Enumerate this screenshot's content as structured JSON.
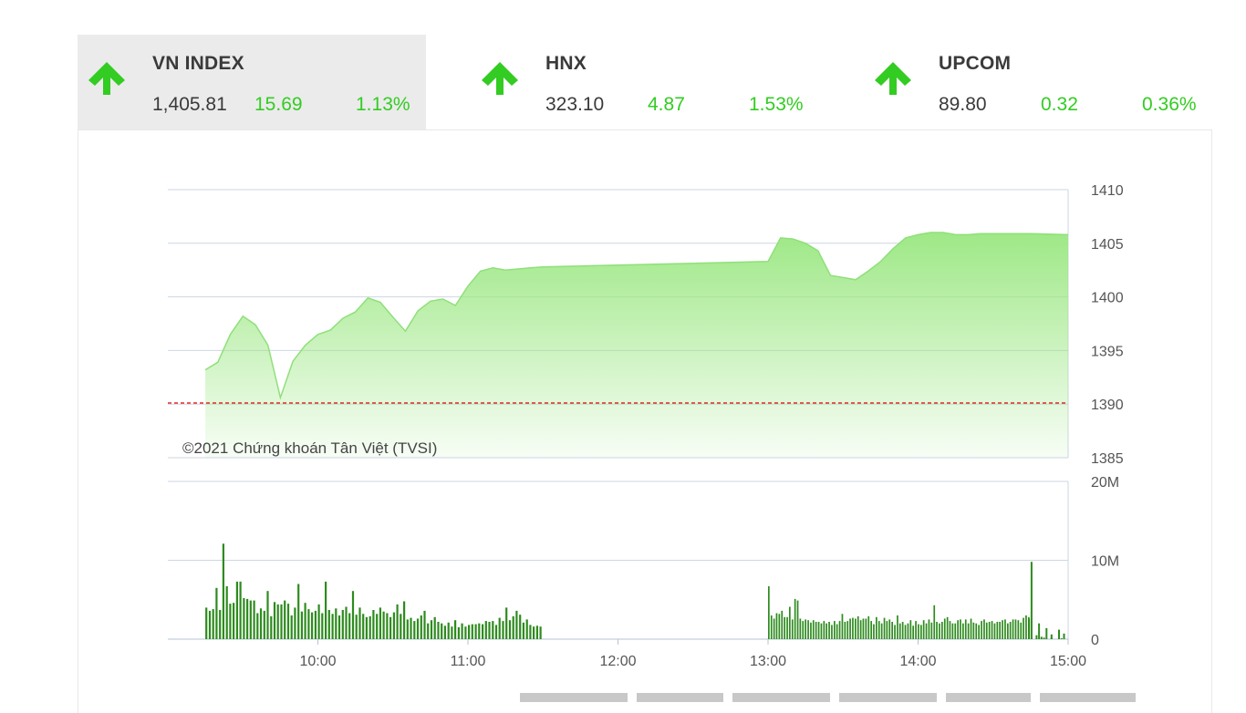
{
  "tabs": [
    {
      "name": "VN INDEX",
      "value": "1,405.81",
      "change": "15.69",
      "percent": "1.13%",
      "direction": "up-arrow-icon"
    },
    {
      "name": "HNX",
      "value": "323.10",
      "change": "4.87",
      "percent": "1.53%",
      "direction": "up-arrow-icon"
    },
    {
      "name": "UPCOM",
      "value": "89.80",
      "change": "0.32",
      "percent": "0.36%",
      "direction": "up-arrow-icon"
    }
  ],
  "colors": {
    "up": "#33cc22",
    "line": "#8fe07a",
    "fill_top": "#a6ea8f",
    "reference": "#dd0000",
    "volume": "#2e8b1e",
    "grid": "#c9d3df"
  },
  "chart_data": [
    {
      "type": "area",
      "title": "",
      "credit": "©2021 Chứng khoán Tân Việt (TVSI)",
      "xlabel": "",
      "ylabel": "",
      "x_ticks": [
        "10:00",
        "11:00",
        "12:00",
        "13:00",
        "14:00",
        "15:00"
      ],
      "y_ticks": [
        "1410",
        "1405",
        "1400",
        "1395",
        "1390",
        "1385"
      ],
      "ylim": [
        1385,
        1410
      ],
      "reference_value": 1390.1,
      "grid": true,
      "axis_position": "right",
      "x": [
        "09:15",
        "09:20",
        "09:25",
        "09:30",
        "09:35",
        "09:40",
        "09:45",
        "09:50",
        "09:55",
        "10:00",
        "10:05",
        "10:10",
        "10:15",
        "10:20",
        "10:25",
        "10:30",
        "10:35",
        "10:40",
        "10:45",
        "10:50",
        "10:55",
        "11:00",
        "11:05",
        "11:10",
        "11:15",
        "11:20",
        "11:25",
        "11:30",
        "13:00",
        "13:05",
        "13:10",
        "13:15",
        "13:20",
        "13:25",
        "13:30",
        "13:35",
        "13:40",
        "13:45",
        "13:50",
        "13:55",
        "14:00",
        "14:05",
        "14:10",
        "14:15",
        "14:20",
        "14:25",
        "14:30",
        "14:35",
        "14:40",
        "14:45",
        "15:00"
      ],
      "values": [
        1393.2,
        1393.9,
        1396.5,
        1398.2,
        1397.4,
        1395.5,
        1390.6,
        1394.0,
        1395.5,
        1396.5,
        1396.9,
        1398.0,
        1398.6,
        1399.9,
        1399.5,
        1398.1,
        1396.8,
        1398.7,
        1399.6,
        1399.8,
        1399.2,
        1401.0,
        1402.4,
        1402.7,
        1402.5,
        1402.6,
        1402.7,
        1402.8,
        1403.3,
        1405.5,
        1405.4,
        1405.0,
        1404.3,
        1402.0,
        1401.8,
        1401.6,
        1402.4,
        1403.3,
        1404.5,
        1405.5,
        1405.8,
        1406.0,
        1406.0,
        1405.8,
        1405.8,
        1405.9,
        1405.9,
        1405.9,
        1405.9,
        1405.9,
        1405.8
      ]
    },
    {
      "type": "bar",
      "title": "",
      "xlabel": "",
      "ylabel": "",
      "x_ticks": [
        "10:00",
        "11:00",
        "12:00",
        "13:00",
        "14:00",
        "15:00"
      ],
      "y_ticks": [
        "20M",
        "10M",
        "0"
      ],
      "ylim": [
        0,
        20
      ],
      "unit": "M",
      "grid": true,
      "session1_start": "09:15",
      "session1_end": "11:30",
      "session2_start": "13:00",
      "session2_end": "14:45",
      "session1_volumes": [
        4.0,
        3.6,
        3.8,
        6.5,
        3.7,
        12.1,
        6.7,
        4.5,
        4.6,
        7.3,
        7.3,
        5.2,
        5.1,
        4.9,
        4.9,
        3.3,
        3.9,
        3.6,
        6.1,
        2.9,
        4.7,
        4.4,
        4.4,
        4.9,
        4.5,
        3.0,
        4.0,
        7.0,
        3.5,
        4.6,
        3.8,
        3.4,
        3.6,
        4.4,
        3.3,
        7.3,
        3.7,
        3.2,
        3.9,
        3.0,
        3.7,
        4.1,
        3.3,
        6.1,
        3.1,
        4.0,
        3.2,
        2.8,
        2.9,
        3.7,
        3.2,
        4.0,
        3.5,
        3.3,
        2.8,
        3.4,
        4.4,
        3.2,
        4.8,
        2.5,
        2.7,
        2.3,
        2.6,
        3.0,
        3.6,
        2.0,
        2.4,
        2.8,
        2.2,
        2.0,
        1.7,
        2.1,
        1.6,
        2.4,
        1.5,
        2.0,
        1.6,
        1.8,
        1.9,
        1.9,
        2.0,
        1.9,
        2.3,
        2.2,
        2.3,
        1.8,
        2.7,
        2.3,
        4.0,
        2.4,
        2.9,
        3.6,
        3.1,
        2.1,
        2.5,
        1.8,
        1.6,
        1.7,
        1.6
      ],
      "session2_volumes": [
        6.7,
        3.0,
        2.6,
        3.3,
        3.2,
        3.6,
        2.8,
        2.8,
        4.1,
        2.5,
        5.1,
        4.9,
        2.6,
        2.3,
        2.5,
        2.4,
        2.1,
        2.4,
        2.2,
        2.2,
        2.0,
        2.3,
        2.0,
        2.2,
        1.8,
        2.3,
        1.9,
        2.3,
        3.2,
        2.2,
        2.3,
        2.6,
        2.7,
        2.6,
        2.9,
        2.4,
        2.6,
        2.6,
        2.9,
        2.3,
        1.9,
        2.8,
        2.3,
        2.0,
        2.7,
        2.3,
        2.5,
        2.2,
        1.8,
        3.0,
        2.0,
        2.2,
        1.8,
        2.0,
        2.4,
        1.7,
        2.3,
        1.9,
        1.8,
        2.4,
        2.0,
        2.5,
        2.1,
        4.3,
        2.2,
        2.0,
        2.2,
        2.6,
        2.8,
        2.3,
        2.0,
        2.0,
        2.4,
        2.5,
        2.0,
        2.5,
        2.0,
        2.6,
        2.1,
        2.0,
        1.8,
        2.3,
        2.5,
        2.1,
        2.2,
        2.3,
        2.0,
        2.2,
        2.2,
        2.4,
        2.5,
        2.0,
        2.2,
        2.5,
        2.5,
        2.4,
        2.1,
        2.7,
        3.0,
        2.8
      ],
      "late_bars": [
        {
          "time": "14:50",
          "value": 0.2
        },
        {
          "time": "14:53",
          "value": 0.2
        },
        {
          "time": "14:57",
          "value": 0.1
        },
        {
          "time": "14:49",
          "value": 0.3
        },
        {
          "time": "14:44",
          "value": 2.6
        },
        {
          "time": "14:45",
          "value": 9.8
        },
        {
          "time": "14:47",
          "value": 0.5
        },
        {
          "time": "14:48",
          "value": 2.0
        },
        {
          "time": "14:51",
          "value": 1.4
        },
        {
          "time": "14:53",
          "value": 0.6
        },
        {
          "time": "14:56",
          "value": 1.2
        },
        {
          "time": "14:58",
          "value": 0.7
        }
      ]
    }
  ]
}
